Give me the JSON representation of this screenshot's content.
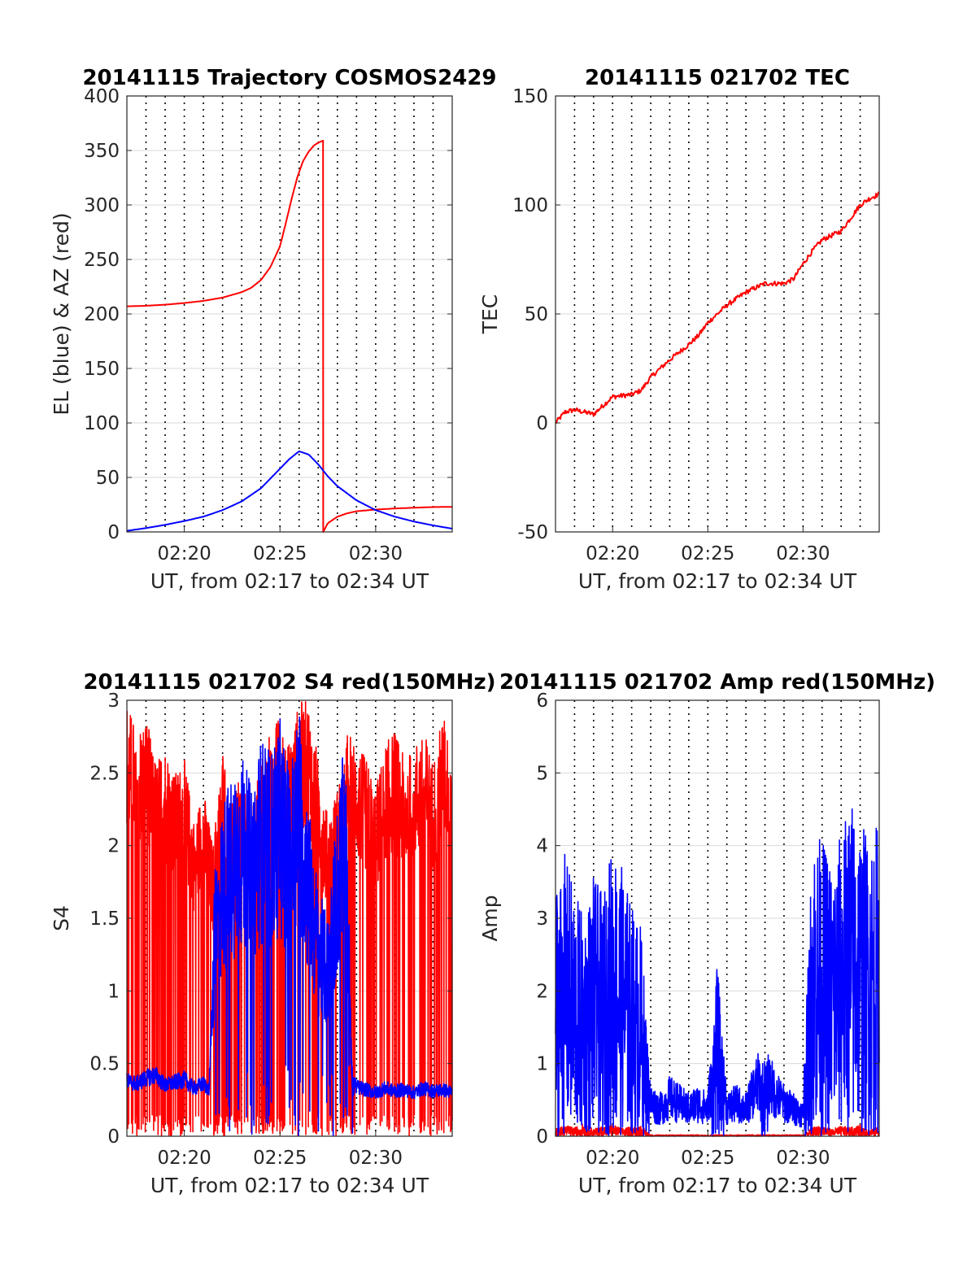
{
  "chart_data": [
    {
      "id": "trajectory",
      "type": "line",
      "title": "20141115 Trajectory COSMOS2429",
      "xlabel": "UT, from 02:17 to 02:34 UT",
      "ylabel": "EL (blue) & AZ (red)",
      "xlim": [
        17,
        34
      ],
      "ylim": [
        0,
        400
      ],
      "xticks": [
        20,
        25,
        30
      ],
      "xtick_labels": [
        "02:20",
        "02:25",
        "02:30"
      ],
      "yticks": [
        0,
        50,
        100,
        150,
        200,
        250,
        300,
        350,
        400
      ],
      "ytick_labels": [
        "0",
        "50",
        "100",
        "150",
        "200",
        "250",
        "300",
        "350",
        "400"
      ],
      "grid": "dotted vertical every 1 min, dotted horizontal at y-ticks",
      "series": [
        {
          "color": "#ff0000",
          "x": [
            17,
            18,
            19,
            20,
            21,
            22,
            23,
            23.5,
            24,
            24.5,
            25,
            25.3,
            25.6,
            25.9,
            26.2,
            26.5,
            26.8,
            27.1,
            27.25,
            27.26,
            27.5,
            28,
            28.5,
            29,
            30,
            31,
            32,
            33,
            34
          ],
          "y": [
            207,
            207.5,
            208.5,
            210,
            212,
            215,
            220,
            224,
            231,
            243,
            262,
            283,
            305,
            325,
            340,
            349,
            355,
            358,
            359,
            0,
            8,
            14,
            17,
            19,
            20.5,
            21.5,
            22.2,
            22.8,
            23
          ]
        },
        {
          "color": "#0000ff",
          "x": [
            17,
            18,
            19,
            20,
            21,
            22,
            23,
            24,
            25,
            25.5,
            26,
            26.5,
            27,
            27.5,
            28,
            29,
            30,
            31,
            32,
            33,
            34
          ],
          "y": [
            1,
            3.5,
            6.5,
            10,
            14,
            20,
            28,
            40,
            58,
            67,
            74,
            71,
            62,
            51,
            42,
            29,
            20,
            14,
            9.5,
            6,
            3
          ]
        }
      ]
    },
    {
      "id": "tec",
      "type": "line",
      "title": "20141115 021702 TEC",
      "xlabel": "UT, from 02:17 to 02:34 UT",
      "ylabel": "TEC",
      "xlim": [
        17,
        34
      ],
      "ylim": [
        -50,
        150
      ],
      "xticks": [
        20,
        25,
        30
      ],
      "xtick_labels": [
        "02:20",
        "02:25",
        "02:30"
      ],
      "yticks": [
        -50,
        0,
        50,
        100,
        150
      ],
      "ytick_labels": [
        "-50",
        "0",
        "50",
        "100",
        "150"
      ],
      "grid": "dotted vertical every 1 min",
      "series": [
        {
          "color": "#ff0000",
          "x": [
            17,
            17.5,
            18,
            18.5,
            19,
            19.5,
            20,
            21,
            21.5,
            22,
            23,
            24,
            24.5,
            25,
            26,
            27,
            28,
            29,
            29.5,
            30,
            30.5,
            31,
            31.5,
            32,
            32.5,
            33,
            33.5,
            34
          ],
          "y": [
            0,
            5,
            6,
            5,
            4,
            8,
            12,
            13,
            15,
            21,
            29,
            36,
            40,
            46,
            54,
            60,
            64,
            64,
            66,
            73,
            79,
            84,
            86,
            88,
            94,
            100,
            103,
            105
          ]
        }
      ]
    },
    {
      "id": "s4",
      "type": "line",
      "title": "20141115 021702 S4 red(150MHz)",
      "xlabel": "UT, from 02:17 to 02:34 UT",
      "ylabel": "S4",
      "xlim": [
        17,
        34
      ],
      "ylim": [
        0,
        3
      ],
      "xticks": [
        20,
        25,
        30
      ],
      "xtick_labels": [
        "02:20",
        "02:25",
        "02:30"
      ],
      "yticks": [
        0,
        0.5,
        1,
        1.5,
        2,
        2.5,
        3
      ],
      "ytick_labels": [
        "0",
        "0.5",
        "1",
        "1.5",
        "2",
        "2.5",
        "3"
      ],
      "grid": "dotted vertical every 1 min, dotted horizontal at y-ticks",
      "series": [
        {
          "color": "#ff0000",
          "x": [
            17,
            17.5,
            18,
            18.5,
            19,
            19.5,
            20,
            20.5,
            21,
            21.5,
            22,
            22.5,
            23,
            23.5,
            24,
            24.5,
            25,
            25.5,
            26,
            26.5,
            27,
            27.5,
            28,
            28.5,
            29,
            29.5,
            30,
            30.5,
            31,
            31.5,
            32,
            32.5,
            33,
            33.5,
            34
          ],
          "y": [
            3,
            2.8,
            2.9,
            2.6,
            2.7,
            2.5,
            2.6,
            2.2,
            2.4,
            2.0,
            2.7,
            2.3,
            2.5,
            2.2,
            2.6,
            2.8,
            2.9,
            2.7,
            3,
            3,
            2.6,
            2.2,
            2.4,
            2.8,
            2.7,
            2.6,
            2.4,
            2.7,
            2.8,
            2.6,
            2.7,
            2.8,
            2.6,
            2.9,
            2.8
          ]
        },
        {
          "color": "#0000ff",
          "x": [
            17,
            17.5,
            18,
            18.5,
            19,
            19.5,
            20,
            20.5,
            21,
            21.3,
            21.6,
            22,
            22.5,
            23,
            23.5,
            24,
            24.5,
            25,
            25.5,
            26,
            26.5,
            27,
            27.5,
            28,
            28.4,
            28.8,
            29,
            29.5,
            30,
            30.5,
            31,
            31.5,
            32,
            32.5,
            33,
            33.5,
            34
          ],
          "y": [
            0.38,
            0.36,
            0.4,
            0.42,
            0.35,
            0.37,
            0.39,
            0.33,
            0.36,
            0.32,
            1.6,
            2.0,
            2.2,
            2.3,
            2.1,
            2.4,
            2.3,
            2.5,
            2.2,
            2.6,
            2.0,
            1.5,
            1.3,
            2.0,
            2.4,
            0.4,
            0.34,
            0.32,
            0.3,
            0.33,
            0.31,
            0.32,
            0.3,
            0.33,
            0.31,
            0.32,
            0.3
          ]
        }
      ]
    },
    {
      "id": "amp",
      "type": "line",
      "title": "20141115 021702 Amp red(150MHz)",
      "xlabel": "UT, from 02:17 to 02:34 UT",
      "ylabel": "Amp",
      "xlim": [
        17,
        34
      ],
      "ylim": [
        0,
        6
      ],
      "xticks": [
        20,
        25,
        30
      ],
      "xtick_labels": [
        "02:20",
        "02:25",
        "02:30"
      ],
      "yticks": [
        0,
        1,
        2,
        3,
        4,
        5,
        6
      ],
      "ytick_labels": [
        "0",
        "1",
        "2",
        "3",
        "4",
        "5",
        "6"
      ],
      "grid": "dotted vertical every 1 min, horizontal at y-ticks",
      "series": [
        {
          "color": "#ff0000",
          "x": [
            17,
            17.5,
            18,
            18.5,
            19,
            19.5,
            20,
            20.5,
            21,
            21.5,
            22,
            22.5,
            23,
            23.5,
            24,
            24.5,
            25,
            25.5,
            26,
            26.5,
            27,
            27.5,
            28,
            28.5,
            29,
            29.5,
            30,
            30.5,
            31,
            31.5,
            32,
            32.5,
            33,
            33.5,
            34
          ],
          "y": [
            0.1,
            0.15,
            0.12,
            0.18,
            0.1,
            0.14,
            0.16,
            0.11,
            0.13,
            0.15,
            0.02,
            0.02,
            0.02,
            0.02,
            0.02,
            0.02,
            0.02,
            0.02,
            0.02,
            0.02,
            0.02,
            0.02,
            0.02,
            0.02,
            0.02,
            0.02,
            0.02,
            0.12,
            0.15,
            0.1,
            0.14,
            0.12,
            0.16,
            0.1,
            0.13
          ]
        },
        {
          "color": "#0000ff",
          "x": [
            17,
            17.5,
            18,
            18.5,
            19,
            19.5,
            20,
            20.5,
            21,
            21.5,
            22,
            22.5,
            23,
            23.5,
            24,
            24.5,
            25,
            25.5,
            26,
            26.5,
            27,
            27.5,
            28,
            28.5,
            29,
            29.5,
            30,
            30.5,
            31,
            31.5,
            32,
            32.5,
            33,
            33.5,
            34
          ],
          "y": [
            3.5,
            3.9,
            3.4,
            3.0,
            3.6,
            3.3,
            4.1,
            3.7,
            3.2,
            2.9,
            0.6,
            0.5,
            0.7,
            0.6,
            0.5,
            0.6,
            0.5,
            2.4,
            0.5,
            0.6,
            0.5,
            0.9,
            1.1,
            0.8,
            0.6,
            0.5,
            0.4,
            4.3,
            4.1,
            3.8,
            4.2,
            4.7,
            4.4,
            4.1,
            4.4
          ]
        }
      ]
    }
  ]
}
